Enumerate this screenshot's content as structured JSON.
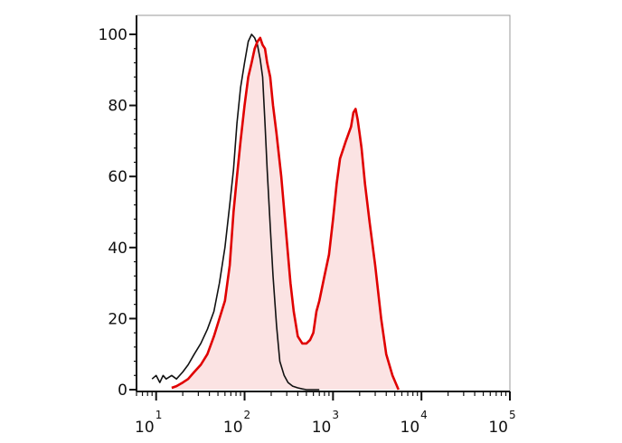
{
  "chart_data": {
    "type": "area",
    "title": "",
    "xlabel": "",
    "ylabel": "",
    "x_scale": "log",
    "xlim": [
      6,
      100000
    ],
    "ylim": [
      0,
      100
    ],
    "grid": false,
    "legend": "none",
    "y_ticks": [
      {
        "value": 0,
        "label": "0"
      },
      {
        "value": 20,
        "label": "20"
      },
      {
        "value": 40,
        "label": "40"
      },
      {
        "value": 60,
        "label": "60"
      },
      {
        "value": 80,
        "label": "80"
      },
      {
        "value": 100,
        "label": "100"
      }
    ],
    "x_ticks": [
      {
        "value": 10,
        "base": "10",
        "exp": "1"
      },
      {
        "value": 100,
        "base": "10",
        "exp": "2"
      },
      {
        "value": 1000,
        "base": "10",
        "exp": "3"
      },
      {
        "value": 10000,
        "base": "10",
        "exp": "4"
      },
      {
        "value": 100000,
        "base": "10",
        "exp": "5"
      }
    ],
    "series": [
      {
        "color": "#111111",
        "fill": "none",
        "x": [
          9,
          10,
          11,
          12,
          13,
          15,
          17,
          20,
          23,
          27,
          32,
          38,
          45,
          52,
          60,
          68,
          75,
          82,
          90,
          100,
          110,
          120,
          130,
          140,
          150,
          160,
          170,
          180,
          195,
          210,
          230,
          250,
          280,
          310,
          350,
          400,
          450,
          500,
          550,
          700
        ],
        "y": [
          3,
          4,
          2,
          4,
          3,
          4,
          3,
          5,
          7,
          10,
          13,
          17,
          22,
          30,
          40,
          52,
          62,
          75,
          85,
          92,
          98,
          100,
          99,
          97,
          93,
          88,
          75,
          62,
          46,
          32,
          18,
          8,
          4,
          2,
          1,
          0.5,
          0.2,
          0,
          0,
          0
        ]
      },
      {
        "color": "#e00000",
        "fill": "#fbe3e3",
        "x": [
          15,
          17,
          20,
          23,
          27,
          32,
          38,
          45,
          52,
          60,
          68,
          75,
          82,
          90,
          100,
          110,
          120,
          130,
          140,
          150,
          160,
          170,
          180,
          195,
          210,
          230,
          260,
          300,
          330,
          360,
          400,
          450,
          500,
          550,
          600,
          650,
          700,
          800,
          900,
          1000,
          1100,
          1200,
          1400,
          1600,
          1700,
          1800,
          1900,
          2000,
          2100,
          2300,
          2600,
          3000,
          3500,
          4000,
          4700,
          5500
        ],
        "y": [
          0.5,
          1,
          2,
          3,
          5,
          7,
          10,
          15,
          20,
          25,
          35,
          50,
          60,
          70,
          80,
          88,
          92,
          96,
          98,
          99,
          97,
          96,
          92,
          88,
          80,
          72,
          60,
          42,
          30,
          22,
          15,
          13,
          13,
          14,
          16,
          22,
          25,
          32,
          38,
          48,
          58,
          65,
          70,
          74,
          78,
          79,
          76,
          72,
          68,
          58,
          47,
          35,
          20,
          10,
          4,
          0
        ]
      }
    ]
  }
}
